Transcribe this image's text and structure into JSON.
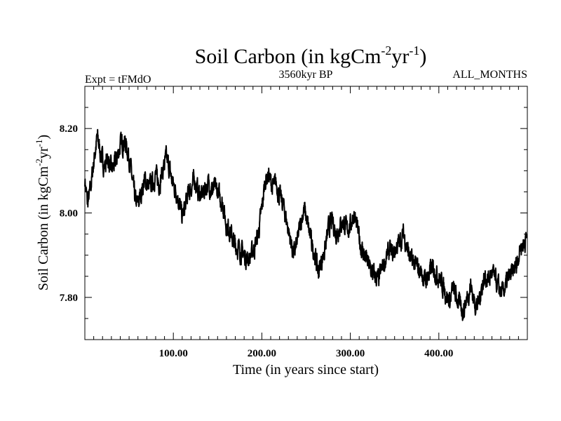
{
  "chart_data": {
    "type": "line",
    "title": {
      "main": "Soil Carbon (in kgCm",
      "sup1": "-2",
      "mid": "yr",
      "sup2": "-1",
      "end": ")"
    },
    "left_label": "Expt = tFMdO",
    "center_label": "3560kyr BP",
    "right_label": "ALL_MONTHS",
    "xlabel": "Time (in years since start)",
    "ylabel": {
      "main": "Soil Carbon (in kgCm",
      "sup1": "-2",
      "mid": "yr",
      "sup2": "-1",
      "end": ")"
    },
    "xlim": [
      0,
      500
    ],
    "ylim": [
      7.7,
      8.3
    ],
    "x_ticks": [
      100,
      200,
      300,
      400
    ],
    "x_tick_labels": [
      "100.00",
      "200.00",
      "300.00",
      "400.00"
    ],
    "y_ticks": [
      7.8,
      8.0,
      8.2
    ],
    "y_tick_labels": [
      "7.80",
      "8.00",
      "8.20"
    ],
    "grid": false,
    "series": [
      {
        "name": "Soil Carbon",
        "color": "#000000",
        "x": [
          0,
          3,
          6,
          10,
          14,
          18,
          22,
          26,
          30,
          35,
          40,
          45,
          48,
          51,
          54,
          57,
          60,
          64,
          68,
          72,
          76,
          80,
          84,
          88,
          92,
          95,
          98,
          101,
          104,
          107,
          110,
          113,
          116,
          120,
          124,
          128,
          132,
          136,
          140,
          144,
          148,
          152,
          156,
          160,
          164,
          168,
          172,
          176,
          180,
          184,
          188,
          192,
          196,
          200,
          204,
          208,
          212,
          216,
          220,
          224,
          228,
          232,
          236,
          240,
          244,
          248,
          252,
          256,
          260,
          264,
          268,
          272,
          276,
          280,
          284,
          288,
          292,
          296,
          300,
          304,
          308,
          312,
          316,
          320,
          324,
          328,
          332,
          336,
          340,
          344,
          348,
          352,
          356,
          360,
          364,
          368,
          372,
          376,
          380,
          384,
          388,
          392,
          396,
          400,
          404,
          408,
          412,
          416,
          420,
          424,
          428,
          432,
          436,
          440,
          444,
          448,
          452,
          456,
          460,
          464,
          468,
          472,
          476,
          480,
          484,
          488,
          492,
          496,
          499
        ],
        "values": [
          8.08,
          8.02,
          8.05,
          8.12,
          8.18,
          8.14,
          8.11,
          8.13,
          8.1,
          8.12,
          8.16,
          8.17,
          8.15,
          8.12,
          8.07,
          8.03,
          8.02,
          8.05,
          8.08,
          8.06,
          8.07,
          8.09,
          8.07,
          8.1,
          8.13,
          8.11,
          8.08,
          8.06,
          8.05,
          8.02,
          7.99,
          8.01,
          8.04,
          8.06,
          8.08,
          8.05,
          8.04,
          8.06,
          8.07,
          8.05,
          8.06,
          8.04,
          8.02,
          7.97,
          7.96,
          7.93,
          7.92,
          7.91,
          7.9,
          7.89,
          7.9,
          7.92,
          7.95,
          8.01,
          8.08,
          8.09,
          8.06,
          8.07,
          8.04,
          8.02,
          7.98,
          7.94,
          7.9,
          7.93,
          7.98,
          8.01,
          7.97,
          7.93,
          7.9,
          7.86,
          7.89,
          7.92,
          7.97,
          7.98,
          7.95,
          7.97,
          7.98,
          7.96,
          7.97,
          8.0,
          7.96,
          7.92,
          7.9,
          7.88,
          7.86,
          7.85,
          7.84,
          7.87,
          7.89,
          7.91,
          7.9,
          7.92,
          7.93,
          7.95,
          7.92,
          7.89,
          7.88,
          7.87,
          7.86,
          7.84,
          7.85,
          7.87,
          7.86,
          7.85,
          7.83,
          7.81,
          7.79,
          7.82,
          7.8,
          7.78,
          7.77,
          7.8,
          7.83,
          7.79,
          7.78,
          7.82,
          7.85,
          7.84,
          7.86,
          7.84,
          7.82,
          7.81,
          7.83,
          7.85,
          7.86,
          7.88,
          7.92,
          7.93,
          7.94
        ]
      }
    ]
  }
}
